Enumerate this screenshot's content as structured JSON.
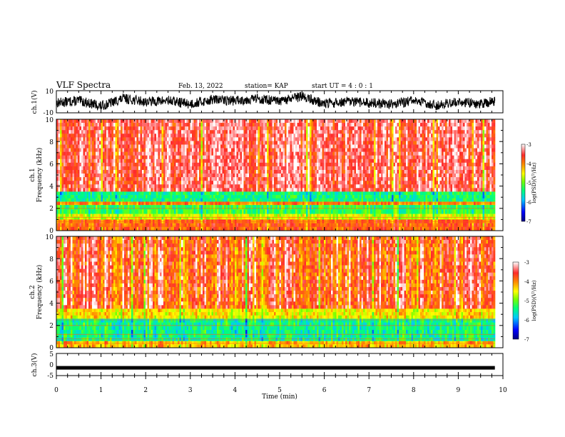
{
  "header": {
    "title": "VLF Spectra",
    "date": "Feb. 13, 2022",
    "station": "station= KAP",
    "start": "start UT = 4 : 0 : 1"
  },
  "chart_data": [
    {
      "type": "line",
      "panel": "ch1-waveform",
      "ylabel": "ch.1(V)",
      "ylim": [
        -10,
        10
      ],
      "yticks": [
        "10",
        "-10"
      ],
      "xlim": [
        0,
        10
      ],
      "series": [
        {
          "x": [
            0,
            0.5,
            1.0,
            1.5,
            2.0,
            2.5,
            3.0,
            3.5,
            4.0,
            4.5,
            5.0,
            5.5,
            6.0,
            6.5,
            7.0,
            7.5,
            8.0,
            8.5,
            9.0,
            9.5,
            9.82
          ],
          "values": [
            -1,
            1,
            -4,
            3,
            0,
            1,
            -2,
            2,
            1,
            3,
            0,
            5,
            -2,
            0,
            -1,
            -2,
            1,
            -3,
            0,
            -2,
            1
          ]
        }
      ]
    },
    {
      "type": "heatmap",
      "panel": "ch1-spectrogram",
      "ylabel_top": "ch.1",
      "ylabel": "Frequency (kHz)",
      "ylim": [
        0,
        10
      ],
      "yticks": [
        "0",
        "2",
        "4",
        "6",
        "8",
        "10"
      ],
      "xlim": [
        0,
        10
      ],
      "data_end_min": 9.82,
      "bands_log_psd": [
        {
          "freq_khz": [
            3.5,
            10.0
          ],
          "value": -3.4
        },
        {
          "freq_khz": [
            2.6,
            3.5
          ],
          "value": -5.4
        },
        {
          "freq_khz": [
            2.3,
            2.6
          ],
          "value": -4.0
        },
        {
          "freq_khz": [
            1.5,
            2.3
          ],
          "value": -5.2
        },
        {
          "freq_khz": [
            1.0,
            1.5
          ],
          "value": -4.6
        },
        {
          "freq_khz": [
            0.0,
            1.0
          ],
          "value": -3.8
        }
      ],
      "colorbar": {
        "label": "log(PSD)(V²/Hz)",
        "range": [
          -7,
          -3
        ],
        "ticks": [
          "-3",
          "-4",
          "-5",
          "-6",
          "-7"
        ]
      }
    },
    {
      "type": "heatmap",
      "panel": "ch2-spectrogram",
      "ylabel_top": "ch.2",
      "ylabel": "Frequency (kHz)",
      "ylim": [
        0,
        10
      ],
      "yticks": [
        "0",
        "2",
        "4",
        "6",
        "8",
        "10"
      ],
      "xlim": [
        0,
        10
      ],
      "data_end_min": 9.82,
      "bands_log_psd": [
        {
          "freq_khz": [
            3.5,
            10.0
          ],
          "value": -3.6
        },
        {
          "freq_khz": [
            2.6,
            3.5
          ],
          "value": -4.4
        },
        {
          "freq_khz": [
            0.6,
            2.6
          ],
          "value": -5.4
        },
        {
          "freq_khz": [
            0.0,
            0.6
          ],
          "value": -4.2
        }
      ],
      "colorbar": {
        "label": "log(PSD)(V²/Hz)",
        "range": [
          -7,
          -3
        ],
        "ticks": [
          "-3",
          "-4",
          "-5",
          "-6",
          "-7"
        ]
      }
    },
    {
      "type": "line",
      "panel": "ch3-waveform",
      "ylabel": "ch.3(V)",
      "ylim": [
        -5,
        5
      ],
      "yticks": [
        "5",
        "0",
        "-5"
      ],
      "xlim": [
        0,
        10
      ],
      "series": [
        {
          "x": [
            0,
            9.82
          ],
          "values": [
            -1.5,
            -1.5
          ]
        }
      ]
    }
  ],
  "time_axis": {
    "label": "Time (min)",
    "ticks": [
      "0",
      "1",
      "2",
      "3",
      "4",
      "5",
      "6",
      "7",
      "8",
      "9",
      "10"
    ]
  },
  "colors": {
    "colormap": [
      "#000080",
      "#0000ff",
      "#00c8ff",
      "#00ff7a",
      "#7aff00",
      "#ffff00",
      "#ff8c00",
      "#ff2a2a",
      "#ffffff"
    ]
  }
}
